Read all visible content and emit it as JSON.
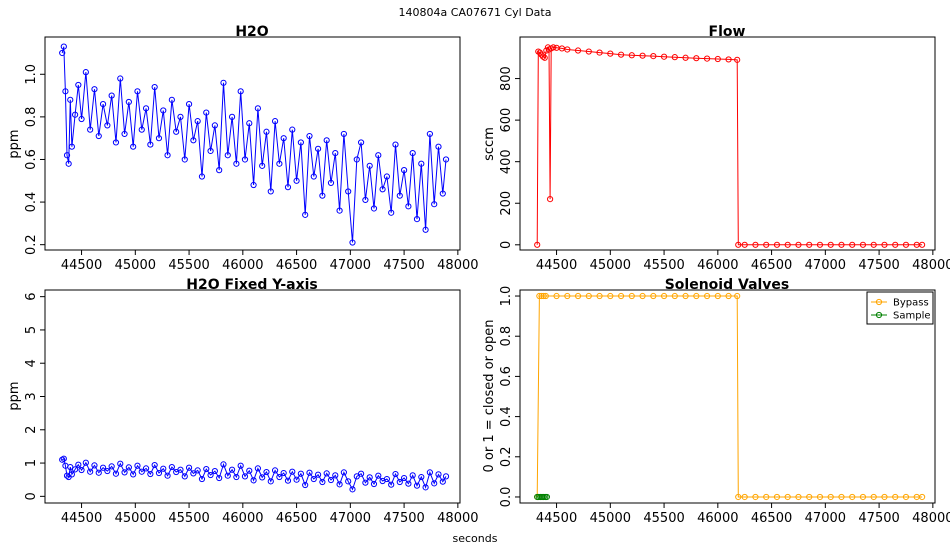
{
  "figure": {
    "title": "140804a    CA07671   Cyl Data",
    "xlabel": "seconds"
  },
  "colors": {
    "h2o": "#0000ff",
    "flow": "#ff0000",
    "bypass": "#ffa500",
    "sample": "#008000",
    "axis": "#000000"
  },
  "chart_data": [
    {
      "id": "h2o",
      "type": "line",
      "title": "H2O",
      "xlabel": "",
      "ylabel": "ppm",
      "xlim": [
        44160,
        48020
      ],
      "ylim": [
        0.175,
        1.175
      ],
      "xticks": [
        44500,
        45000,
        45500,
        46000,
        46500,
        47000,
        47500,
        48000
      ],
      "xtick_labels": [
        "44500",
        "45000",
        "45500",
        "46000",
        "46500",
        "47000",
        "47500",
        "48000"
      ],
      "yticks": [
        0.2,
        0.4,
        0.6,
        0.8,
        1.0
      ],
      "ytick_labels": [
        "0.2",
        "0.4",
        "0.6",
        "0.8",
        "1.0"
      ],
      "marker": "open-circle",
      "series": [
        {
          "x": [
            44320,
            44335,
            44350,
            44365,
            44380,
            44395,
            44410,
            44440,
            44470,
            44500,
            44540,
            44580,
            44620,
            44660,
            44700,
            44740,
            44780,
            44820,
            44860,
            44900,
            44940,
            44980,
            45020,
            45060,
            45100,
            45140,
            45180,
            45220,
            45260,
            45300,
            45340,
            45380,
            45420,
            45460,
            45500,
            45540,
            45580,
            45620,
            45660,
            45700,
            45740,
            45780,
            45820,
            45860,
            45900,
            45940,
            45980,
            46020,
            46060,
            46100,
            46140,
            46180,
            46220,
            46260,
            46300,
            46340,
            46380,
            46420,
            46460,
            46500,
            46540,
            46580,
            46620,
            46660,
            46700,
            46740,
            46780,
            46820,
            46860,
            46900,
            46940,
            46980,
            47020,
            47060,
            47100,
            47140,
            47180,
            47220,
            47260,
            47300,
            47340,
            47380,
            47420,
            47460,
            47500,
            47540,
            47580,
            47620,
            47660,
            47700,
            47740,
            47780,
            47820,
            47860,
            47890
          ],
          "y": [
            1.1,
            1.13,
            0.92,
            0.62,
            0.58,
            0.88,
            0.66,
            0.81,
            0.95,
            0.79,
            1.01,
            0.74,
            0.93,
            0.71,
            0.86,
            0.76,
            0.9,
            0.68,
            0.98,
            0.72,
            0.87,
            0.66,
            0.92,
            0.74,
            0.84,
            0.67,
            0.94,
            0.7,
            0.83,
            0.62,
            0.88,
            0.73,
            0.8,
            0.6,
            0.86,
            0.69,
            0.78,
            0.52,
            0.82,
            0.64,
            0.76,
            0.55,
            0.96,
            0.62,
            0.8,
            0.58,
            0.92,
            0.6,
            0.77,
            0.48,
            0.84,
            0.57,
            0.73,
            0.45,
            0.78,
            0.58,
            0.7,
            0.47,
            0.74,
            0.5,
            0.68,
            0.34,
            0.71,
            0.52,
            0.65,
            0.43,
            0.69,
            0.49,
            0.63,
            0.36,
            0.72,
            0.45,
            0.21,
            0.6,
            0.68,
            0.41,
            0.57,
            0.37,
            0.62,
            0.46,
            0.52,
            0.35,
            0.67,
            0.43,
            0.55,
            0.38,
            0.63,
            0.32,
            0.58,
            0.27,
            0.72,
            0.39,
            0.66,
            0.44,
            0.6
          ]
        }
      ]
    },
    {
      "id": "flow",
      "type": "line",
      "title": "Flow",
      "xlabel": "",
      "ylabel": "sccm",
      "xlim": [
        44160,
        48020
      ],
      "ylim": [
        -25,
        1000
      ],
      "xticks": [
        44500,
        45000,
        45500,
        46000,
        46500,
        47000,
        47500,
        48000
      ],
      "xtick_labels": [
        "44500",
        "45000",
        "45500",
        "46000",
        "46500",
        "47000",
        "47500",
        "48000"
      ],
      "yticks": [
        0,
        200,
        400,
        600,
        800
      ],
      "ytick_labels": [
        "0",
        "200",
        "400",
        "600",
        "800"
      ],
      "marker": "open-circle",
      "series": [
        {
          "x": [
            44320,
            44330,
            44345,
            44360,
            44375,
            44390,
            44405,
            44420,
            44430,
            44440,
            44450,
            44470,
            44500,
            44550,
            44600,
            44700,
            44800,
            44900,
            45000,
            45100,
            45200,
            45300,
            45400,
            45500,
            45600,
            45700,
            45800,
            45900,
            46000,
            46100,
            46180,
            46190,
            46250,
            46350,
            46450,
            46550,
            46650,
            46750,
            46850,
            46950,
            47050,
            47150,
            47250,
            47350,
            47450,
            47550,
            47650,
            47750,
            47850,
            47900
          ],
          "y": [
            0,
            930,
            925,
            915,
            905,
            900,
            935,
            950,
            940,
            220,
            945,
            950,
            948,
            945,
            940,
            935,
            930,
            925,
            920,
            915,
            912,
            910,
            908,
            905,
            903,
            900,
            898,
            896,
            894,
            892,
            890,
            0,
            0,
            0,
            0,
            0,
            0,
            0,
            0,
            0,
            0,
            0,
            0,
            0,
            0,
            0,
            0,
            0,
            0,
            0
          ]
        }
      ]
    },
    {
      "id": "h2o-fixed",
      "type": "line",
      "title": "H2O Fixed Y-axis",
      "xlabel": "",
      "ylabel": "ppm",
      "xlim": [
        44160,
        48020
      ],
      "ylim": [
        -0.2,
        6.2
      ],
      "xticks": [
        44500,
        45000,
        45500,
        46000,
        46500,
        47000,
        47500,
        48000
      ],
      "xtick_labels": [
        "44500",
        "45000",
        "45500",
        "46000",
        "46500",
        "47000",
        "47500",
        "48000"
      ],
      "yticks": [
        0,
        1,
        2,
        3,
        4,
        5,
        6
      ],
      "ytick_labels": [
        "0",
        "1",
        "2",
        "3",
        "4",
        "5",
        "6"
      ],
      "marker": "open-circle",
      "series": [
        {
          "x": [
            44320,
            44335,
            44350,
            44365,
            44380,
            44395,
            44410,
            44440,
            44470,
            44500,
            44540,
            44580,
            44620,
            44660,
            44700,
            44740,
            44780,
            44820,
            44860,
            44900,
            44940,
            44980,
            45020,
            45060,
            45100,
            45140,
            45180,
            45220,
            45260,
            45300,
            45340,
            45380,
            45420,
            45460,
            45500,
            45540,
            45580,
            45620,
            45660,
            45700,
            45740,
            45780,
            45820,
            45860,
            45900,
            45940,
            45980,
            46020,
            46060,
            46100,
            46140,
            46180,
            46220,
            46260,
            46300,
            46340,
            46380,
            46420,
            46460,
            46500,
            46540,
            46580,
            46620,
            46660,
            46700,
            46740,
            46780,
            46820,
            46860,
            46900,
            46940,
            46980,
            47020,
            47060,
            47100,
            47140,
            47180,
            47220,
            47260,
            47300,
            47340,
            47380,
            47420,
            47460,
            47500,
            47540,
            47580,
            47620,
            47660,
            47700,
            47740,
            47780,
            47820,
            47860,
            47890
          ],
          "y": [
            1.1,
            1.13,
            0.92,
            0.62,
            0.58,
            0.88,
            0.66,
            0.81,
            0.95,
            0.79,
            1.01,
            0.74,
            0.93,
            0.71,
            0.86,
            0.76,
            0.9,
            0.68,
            0.98,
            0.72,
            0.87,
            0.66,
            0.92,
            0.74,
            0.84,
            0.67,
            0.94,
            0.7,
            0.83,
            0.62,
            0.88,
            0.73,
            0.8,
            0.6,
            0.86,
            0.69,
            0.78,
            0.52,
            0.82,
            0.64,
            0.76,
            0.55,
            0.96,
            0.62,
            0.8,
            0.58,
            0.92,
            0.6,
            0.77,
            0.48,
            0.84,
            0.57,
            0.73,
            0.45,
            0.78,
            0.58,
            0.7,
            0.47,
            0.74,
            0.5,
            0.68,
            0.34,
            0.71,
            0.52,
            0.65,
            0.43,
            0.69,
            0.49,
            0.63,
            0.36,
            0.72,
            0.45,
            0.21,
            0.6,
            0.68,
            0.41,
            0.57,
            0.37,
            0.62,
            0.46,
            0.52,
            0.35,
            0.67,
            0.43,
            0.55,
            0.38,
            0.63,
            0.32,
            0.58,
            0.27,
            0.72,
            0.39,
            0.66,
            0.44,
            0.6
          ]
        }
      ]
    },
    {
      "id": "valves",
      "type": "line",
      "title": "Solenoid Valves",
      "xlabel": "",
      "ylabel": "0 or 1 = closed or open",
      "xlim": [
        44160,
        48020
      ],
      "ylim": [
        -0.03,
        1.03
      ],
      "xticks": [
        44500,
        45000,
        45500,
        46000,
        46500,
        47000,
        47500,
        48000
      ],
      "xtick_labels": [
        "44500",
        "45000",
        "45500",
        "46000",
        "46500",
        "47000",
        "47500",
        "48000"
      ],
      "yticks": [
        0.0,
        0.2,
        0.4,
        0.6,
        0.8,
        1.0
      ],
      "ytick_labels": [
        "0.0",
        "0.2",
        "0.4",
        "0.6",
        "0.8",
        "1.0"
      ],
      "legend": "top-right",
      "marker": "open-circle",
      "series": [
        {
          "name": "Bypass",
          "x": [
            44320,
            44340,
            44360,
            44380,
            44400,
            44500,
            44600,
            44700,
            44800,
            44900,
            45000,
            45100,
            45200,
            45300,
            45400,
            45500,
            45600,
            45700,
            45800,
            45900,
            46000,
            46100,
            46180,
            46190,
            46250,
            46350,
            46450,
            46550,
            46650,
            46750,
            46850,
            46950,
            47050,
            47150,
            47250,
            47350,
            47450,
            47550,
            47650,
            47750,
            47850,
            47900
          ],
          "y": [
            0,
            1,
            1,
            1,
            1,
            1,
            1,
            1,
            1,
            1,
            1,
            1,
            1,
            1,
            1,
            1,
            1,
            1,
            1,
            1,
            1,
            1,
            1,
            0,
            0,
            0,
            0,
            0,
            0,
            0,
            0,
            0,
            0,
            0,
            0,
            0,
            0,
            0,
            0,
            0,
            0,
            0
          ]
        },
        {
          "name": "Sample",
          "x": [
            44320,
            44335,
            44350,
            44365,
            44380,
            44395,
            44410
          ],
          "y": [
            0,
            0,
            0,
            0,
            0,
            0,
            0
          ]
        }
      ]
    }
  ]
}
